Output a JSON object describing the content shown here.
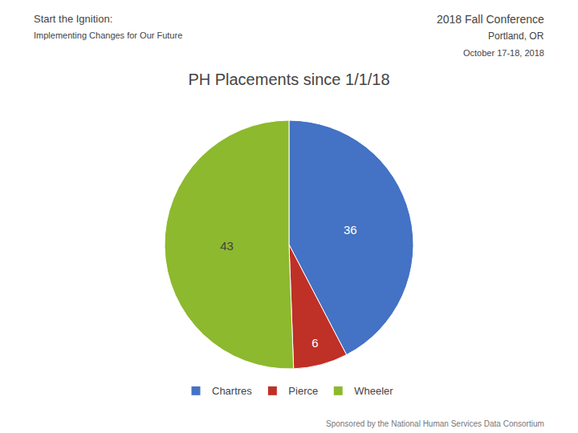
{
  "chart_data": {
    "type": "pie",
    "title": "PH Placements since 1/1/18",
    "categories": [
      "Chartres",
      "Pierce",
      "Wheeler"
    ],
    "values": [
      36,
      6,
      43
    ],
    "colors": [
      "#4472C4",
      "#BF3027",
      "#8DB92E"
    ],
    "data_labels": true,
    "legend": "bottom",
    "annotations": [
      "Start the Ignition:",
      "Implementing Changes for Our Future",
      "2018 Fall Conference",
      "Portland, OR",
      "October 17-18, 2018",
      "Sponsored by the National Human Services Data Consortium"
    ]
  }
}
